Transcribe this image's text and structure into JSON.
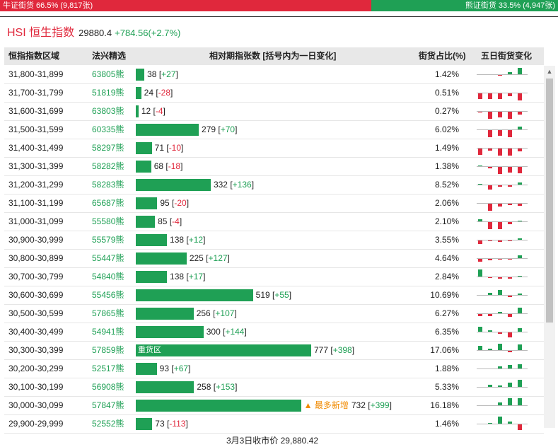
{
  "ratio": {
    "bull_text": "牛证街货 66.5% (9,817张)",
    "bear_text": "熊证街货 33.5% (4,947张)",
    "bull_share": 0.665
  },
  "title": {
    "name": "HSI 恒生指数",
    "price": "29880.4",
    "change": "+784.56(+2.7%)"
  },
  "columns": {
    "range": "恒指指数区域",
    "code": "法兴精选",
    "bar": "相对期指张数 [括号内为一日变化]",
    "pct": "街货占比(%)",
    "spark": "五日街货变化"
  },
  "rows": [
    {
      "range": "31,800-31,899",
      "code": "63805",
      "type": "熊",
      "count": 38,
      "change": "+27",
      "pct": "1.42%",
      "spark": [
        0,
        0,
        -1,
        3,
        9
      ]
    },
    {
      "range": "31,700-31,799",
      "code": "51819",
      "type": "熊",
      "count": 24,
      "change": "-28",
      "pct": "0.51%",
      "spark": [
        -8,
        -8,
        -8,
        -4,
        -10
      ]
    },
    {
      "range": "31,600-31,699",
      "code": "63803",
      "type": "熊",
      "count": 12,
      "change": "-4",
      "pct": "0.27%",
      "spark": [
        -1,
        -10,
        -8,
        -10,
        -4
      ]
    },
    {
      "range": "31,500-31,599",
      "code": "60335",
      "type": "熊",
      "count": 279,
      "change": "+70",
      "pct": "6.02%",
      "spark": [
        0,
        -10,
        -8,
        -10,
        4
      ]
    },
    {
      "range": "31,400-31,499",
      "code": "58297",
      "type": "熊",
      "count": 71,
      "change": "-10",
      "pct": "1.49%",
      "spark": [
        -9,
        -3,
        -10,
        -10,
        -4
      ]
    },
    {
      "range": "31,300-31,399",
      "code": "58282",
      "type": "熊",
      "count": 68,
      "change": "-18",
      "pct": "1.38%",
      "spark": [
        1,
        -2,
        -10,
        -8,
        -9
      ]
    },
    {
      "range": "31,200-31,299",
      "code": "58283",
      "type": "熊",
      "count": 332,
      "change": "+136",
      "pct": "8.52%",
      "spark": [
        1,
        -6,
        -2,
        -2,
        3
      ]
    },
    {
      "range": "31,100-31,199",
      "code": "65687",
      "type": "熊",
      "count": 95,
      "change": "-20",
      "pct": "2.06%",
      "spark": [
        0,
        -10,
        -4,
        -2,
        -3
      ]
    },
    {
      "range": "31,000-31,099",
      "code": "55580",
      "type": "熊",
      "count": 85,
      "change": "-4",
      "pct": "2.10%",
      "spark": [
        3,
        -10,
        -10,
        -3,
        1
      ]
    },
    {
      "range": "30,900-30,999",
      "code": "55579",
      "type": "熊",
      "count": 138,
      "change": "+12",
      "pct": "3.55%",
      "spark": [
        -5,
        -1,
        -2,
        -1,
        2
      ]
    },
    {
      "range": "30,800-30,899",
      "code": "55447",
      "type": "熊",
      "count": 225,
      "change": "+127",
      "pct": "4.64%",
      "spark": [
        -4,
        -2,
        -1,
        -1,
        4
      ]
    },
    {
      "range": "30,700-30,799",
      "code": "54840",
      "type": "熊",
      "count": 138,
      "change": "+17",
      "pct": "2.84%",
      "spark": [
        10,
        -1,
        -2,
        -2,
        1
      ]
    },
    {
      "range": "30,600-30,699",
      "code": "55456",
      "type": "熊",
      "count": 519,
      "change": "+55",
      "pct": "10.69%",
      "spark": [
        0,
        3,
        7,
        -2,
        2
      ]
    },
    {
      "range": "30,500-30,599",
      "code": "57865",
      "type": "熊",
      "count": 256,
      "change": "+107",
      "pct": "6.27%",
      "spark": [
        -3,
        -3,
        2,
        -4,
        8
      ]
    },
    {
      "range": "30,400-30,499",
      "code": "54941",
      "type": "熊",
      "count": 300,
      "change": "+144",
      "pct": "6.35%",
      "spark": [
        7,
        2,
        -2,
        -7,
        5
      ]
    },
    {
      "range": "30,300-30,399",
      "code": "57859",
      "type": "熊",
      "count": 777,
      "change": "+398",
      "pct": "17.06%",
      "spark": [
        6,
        2,
        9,
        -2,
        8
      ],
      "label": "重货区"
    },
    {
      "range": "30,200-30,299",
      "code": "52517",
      "type": "熊",
      "count": 93,
      "change": "+67",
      "pct": "1.88%",
      "spark": [
        0,
        0,
        3,
        5,
        6
      ]
    },
    {
      "range": "30,100-30,199",
      "code": "56908",
      "type": "熊",
      "count": 258,
      "change": "+153",
      "pct": "5.33%",
      "spark": [
        0,
        3,
        2,
        6,
        10
      ]
    },
    {
      "range": "30,000-30,099",
      "code": "57847",
      "type": "熊",
      "count": 732,
      "change": "+399",
      "pct": "16.18%",
      "spark": [
        0,
        0,
        4,
        10,
        10
      ],
      "tag": "最多新增"
    },
    {
      "range": "29,900-29,999",
      "code": "52552",
      "type": "熊",
      "count": 73,
      "change": "-113",
      "pct": "1.46%",
      "spark": [
        0,
        1,
        10,
        3,
        -8
      ]
    }
  ],
  "max_count": 777,
  "colors": {
    "bull": "#e0283c",
    "bear": "#1fa055",
    "bar": "#1fa055",
    "tag": "#f08a00"
  },
  "footer": "3月3日收市价 29,880.42"
}
